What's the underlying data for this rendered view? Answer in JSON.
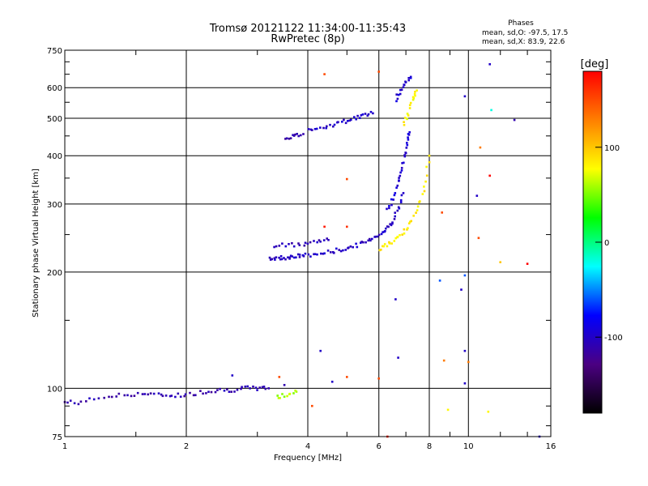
{
  "chart_data": {
    "type": "scatter",
    "title": "Tromsø 20121122 11:34:00-11:35:43",
    "subtitle": "RwPretec (8p)",
    "xlabel": "Frequency [MHz]",
    "ylabel": "Stationary phase Virtual Height [km]",
    "x_scale": "log",
    "y_scale": "log",
    "xlim": [
      1,
      16
    ],
    "ylim": [
      75,
      750
    ],
    "x_ticks": [
      1,
      2,
      4,
      6,
      8,
      10,
      16
    ],
    "y_ticks": [
      75,
      100,
      200,
      300,
      400,
      500,
      600,
      750
    ],
    "x_ticklabels": [
      "1",
      "2",
      "4",
      "6",
      "8",
      "10",
      "16"
    ],
    "y_ticklabels": [
      "75",
      "100",
      "200",
      "300",
      "400",
      "500",
      "600",
      "750"
    ],
    "x_gridlines": [
      2,
      4,
      6,
      8,
      10
    ],
    "y_gridlines": [
      100,
      200,
      300,
      400,
      500,
      600
    ],
    "grid": true,
    "phase_info": {
      "heading": "Phases",
      "line_o": "mean, sd,O: -97.5, 17.5",
      "line_x": "mean, sd,X: 83.9, 22.6"
    },
    "colorbar": {
      "label": "[deg]",
      "ticks": [
        100,
        0,
        -100
      ],
      "tick_labels": [
        "100",
        "0",
        "-100"
      ],
      "range": [
        -180,
        180
      ],
      "stops": [
        "#000000",
        "#4b0082",
        "#0000ff",
        "#00ffff",
        "#00ff00",
        "#ffff00",
        "#ff7f00",
        "#ff0000"
      ]
    },
    "series": [
      {
        "tracks": [
          {
            "x": [
              1.0,
              1.1,
              1.25,
              1.4,
              1.55,
              1.7,
              1.85,
              2.0,
              2.2,
              2.4,
              2.6,
              2.8,
              3.0,
              3.2
            ],
            "y": [
              92,
              92,
              95,
              96,
              97,
              96,
              96,
              96,
              98,
              99,
              99,
              100,
              100,
              100
            ],
            "phase": -110
          },
          {
            "x": [
              3.2,
              3.35,
              3.5,
              3.65,
              3.8,
              4.0,
              4.3,
              4.6,
              4.9,
              5.2,
              5.5,
              5.8,
              6.1,
              6.3,
              6.5,
              6.7,
              6.9
            ],
            "y": [
              217,
              217,
              218,
              219,
              220,
              221,
              223,
              226,
              229,
              233,
              238,
              245,
              252,
              260,
              272,
              290,
              320
            ],
            "phase": -100
          },
          {
            "x": [
              3.3,
              3.6,
              3.9,
              4.2,
              4.5
            ],
            "y": [
              233,
              235,
              237,
              240,
              242
            ],
            "phase": -105
          },
          {
            "x": [
              6.3,
              6.5,
              6.7,
              6.85,
              6.95,
              7.05,
              7.15
            ],
            "y": [
              290,
              310,
              340,
              370,
              400,
              430,
              460
            ],
            "phase": -95
          },
          {
            "x": [
              3.5,
              3.7,
              3.9
            ],
            "y": [
              445,
              450,
              455
            ],
            "phase": -110
          },
          {
            "x": [
              4.0,
              4.3,
              4.6,
              4.9,
              5.2,
              5.5,
              5.8
            ],
            "y": [
              468,
              474,
              480,
              490,
              500,
              508,
              515
            ],
            "phase": -100
          },
          {
            "x": [
              6.6,
              6.8,
              7.0,
              7.2
            ],
            "y": [
              560,
              590,
              620,
              640
            ],
            "phase": -95
          },
          {
            "x": [
              6.0,
              6.3,
              6.6,
              6.9,
              7.2,
              7.5,
              7.8,
              8.0
            ],
            "y": [
              230,
              235,
              242,
              252,
              268,
              292,
              335,
              400
            ],
            "phase": 85
          },
          {
            "x": [
              6.9,
              7.1,
              7.3,
              7.45
            ],
            "y": [
              480,
              520,
              560,
              590
            ],
            "phase": 80
          },
          {
            "x": [
              3.35,
              3.55,
              3.75
            ],
            "y": [
              95,
              96,
              98
            ],
            "phase": 60
          }
        ],
        "points": [
          {
            "x": 4.4,
            "y": 650,
            "phase": 150
          },
          {
            "x": 6.0,
            "y": 660,
            "phase": 150
          },
          {
            "x": 9.8,
            "y": 570,
            "phase": -100
          },
          {
            "x": 11.3,
            "y": 690,
            "phase": -100
          },
          {
            "x": 13.0,
            "y": 495,
            "phase": -110
          },
          {
            "x": 11.4,
            "y": 525,
            "phase": -20
          },
          {
            "x": 10.7,
            "y": 420,
            "phase": 130
          },
          {
            "x": 11.3,
            "y": 355,
            "phase": 180
          },
          {
            "x": 10.5,
            "y": 315,
            "phase": -100
          },
          {
            "x": 10.6,
            "y": 245,
            "phase": 150
          },
          {
            "x": 8.6,
            "y": 285,
            "phase": 150
          },
          {
            "x": 12.0,
            "y": 212,
            "phase": 100
          },
          {
            "x": 14.0,
            "y": 210,
            "phase": 180
          },
          {
            "x": 9.8,
            "y": 196,
            "phase": -60
          },
          {
            "x": 8.5,
            "y": 190,
            "phase": -60
          },
          {
            "x": 9.6,
            "y": 180,
            "phase": -100
          },
          {
            "x": 9.8,
            "y": 125,
            "phase": -100
          },
          {
            "x": 10.0,
            "y": 117,
            "phase": 130
          },
          {
            "x": 8.7,
            "y": 118,
            "phase": 130
          },
          {
            "x": 9.8,
            "y": 103,
            "phase": -100
          },
          {
            "x": 5.0,
            "y": 348,
            "phase": 150
          },
          {
            "x": 5.0,
            "y": 262,
            "phase": 160
          },
          {
            "x": 5.0,
            "y": 107,
            "phase": 150
          },
          {
            "x": 6.0,
            "y": 106,
            "phase": 150
          },
          {
            "x": 4.4,
            "y": 262,
            "phase": 170
          },
          {
            "x": 6.3,
            "y": 75,
            "phase": 170
          },
          {
            "x": 6.7,
            "y": 120,
            "phase": -100
          },
          {
            "x": 4.1,
            "y": 90,
            "phase": 150
          },
          {
            "x": 8.9,
            "y": 88,
            "phase": 80
          },
          {
            "x": 11.2,
            "y": 87,
            "phase": 80
          },
          {
            "x": 15.0,
            "y": 75,
            "phase": -100
          },
          {
            "x": 4.6,
            "y": 104,
            "phase": -100
          },
          {
            "x": 4.3,
            "y": 125,
            "phase": -100
          },
          {
            "x": 6.6,
            "y": 170,
            "phase": -100
          },
          {
            "x": 3.5,
            "y": 102,
            "phase": -110
          },
          {
            "x": 3.4,
            "y": 107,
            "phase": 150
          },
          {
            "x": 2.6,
            "y": 108,
            "phase": -100
          }
        ]
      }
    ]
  }
}
